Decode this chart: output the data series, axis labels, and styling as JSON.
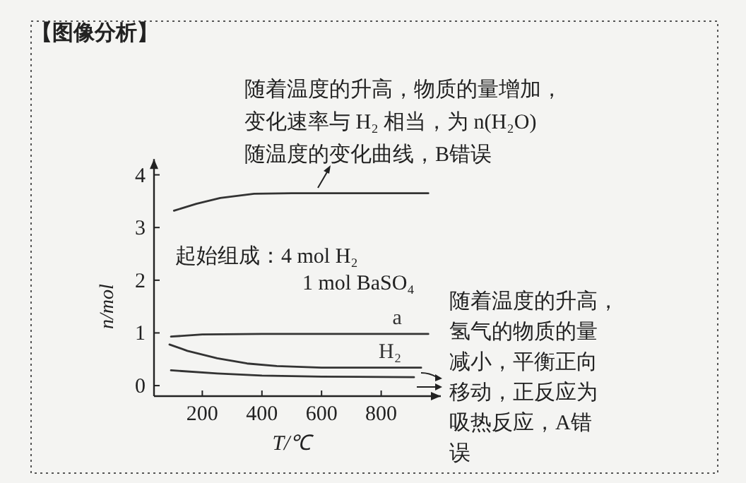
{
  "chart_data": {
    "type": "line",
    "title": "【图像分析】",
    "xlabel": "T/℃",
    "ylabel": "n/mol",
    "xlim": [
      38,
      1000
    ],
    "ylim": [
      -0.2,
      4.3
    ],
    "xticks": [
      200,
      400,
      600,
      800
    ],
    "yticks": [
      0,
      1,
      2,
      3,
      4
    ],
    "grid": false,
    "marker": "none",
    "line_style": "solid",
    "series": [
      {
        "color": "#333333",
        "x": [
          105,
          180,
          260,
          374,
          500,
          700,
          958
        ],
        "values": [
          3.32,
          3.45,
          3.56,
          3.64,
          3.65,
          3.65,
          3.65
        ]
      },
      {
        "name": "a",
        "color": "#333333",
        "x": [
          95,
          200,
          400,
          958
        ],
        "values": [
          0.93,
          0.97,
          0.98,
          0.98
        ]
      },
      {
        "name": "H₂",
        "color": "#333333",
        "x": [
          90,
          150,
          250,
          350,
          450,
          600,
          934
        ],
        "values": [
          0.78,
          0.66,
          0.52,
          0.42,
          0.37,
          0.34,
          0.34
        ]
      },
      {
        "color": "#333333",
        "x": [
          95,
          250,
          400,
          600,
          910
        ],
        "values": [
          0.29,
          0.23,
          0.19,
          0.17,
          0.16
        ]
      }
    ],
    "annotations": [
      "随着温度的升高，物质的量增加，变化速率与 H₂ 相当，为 n(H₂O) 随温度的变化曲线，B错误",
      "起始组成：4 mol H₂",
      "1 mol BaSO₄",
      "随着温度的升高，氢气的物质的量减小，平衡正向移动，正反应为吸热反应，A错误"
    ]
  }
}
